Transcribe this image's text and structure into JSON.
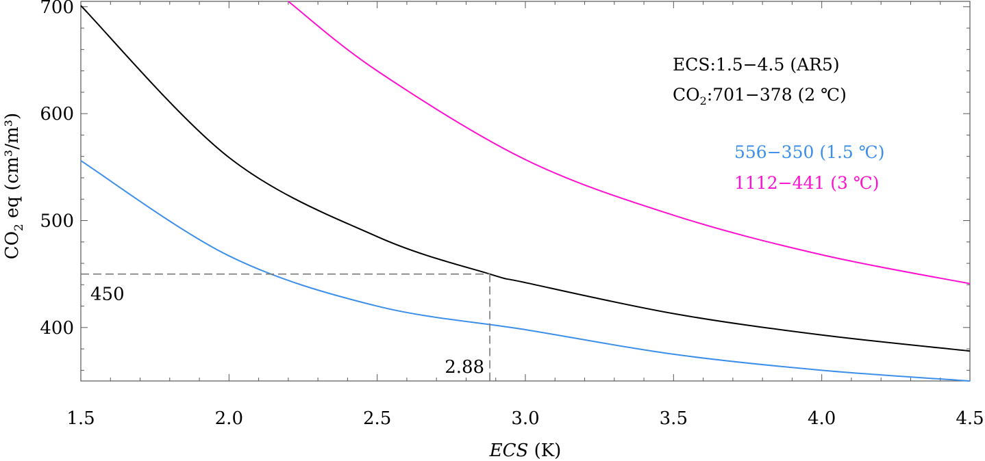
{
  "chart_data": {
    "type": "line",
    "xlabel_italic": "ECS",
    "xlabel_unit": "(K)",
    "ylabel": "CO2 eq (cm³/m³)",
    "ylabel_parts": {
      "a": "CO",
      "sub": "2",
      "b": " eq (cm³/m³)"
    },
    "xlim": [
      1.5,
      4.5
    ],
    "ylim": [
      350,
      705
    ],
    "x_ticks": [
      1.5,
      2.0,
      2.5,
      3.0,
      3.5,
      4.0,
      4.5
    ],
    "x_tick_labels": [
      "1.5",
      "2.0",
      "2.5",
      "3.0",
      "3.5",
      "4.0",
      "4.5"
    ],
    "y_ticks": [
      400,
      500,
      600,
      700
    ],
    "y_tick_labels": [
      "400",
      "500",
      "600",
      "700"
    ],
    "series": [
      {
        "name": "2 ℃",
        "color": "#000000",
        "x": [
          1.5,
          2.0,
          2.5,
          2.88,
          3.0,
          3.5,
          4.0,
          4.5
        ],
        "values": [
          701,
          559,
          485,
          450,
          442,
          413,
          393,
          378
        ]
      },
      {
        "name": "1.5 ℃",
        "color": "#3b8eea",
        "x": [
          1.5,
          2.0,
          2.5,
          3.0,
          3.5,
          4.0,
          4.5
        ],
        "values": [
          556,
          467,
          420,
          398,
          375,
          360,
          350
        ]
      },
      {
        "name": "3 ℃",
        "color": "#ff10d0",
        "x": [
          2.2,
          2.5,
          3.0,
          3.5,
          4.0,
          4.5
        ],
        "values": [
          705,
          640,
          557,
          505,
          468,
          441
        ]
      }
    ],
    "reference": {
      "x": 2.88,
      "y": 450,
      "x_label": "2.88",
      "y_label": "450"
    },
    "annotations": [
      {
        "text": "ECS:1.5−4.5 (AR5)",
        "color": "#000000"
      },
      {
        "prefix": "CO",
        "sub": "2",
        "text": ":701−378 (2 ℃)",
        "color": "#000000"
      },
      {
        "text": "556−350 (1.5 ℃)",
        "color": "#3b8eea"
      },
      {
        "text": "1112−441 (3 ℃)",
        "color": "#ff10d0"
      }
    ]
  }
}
